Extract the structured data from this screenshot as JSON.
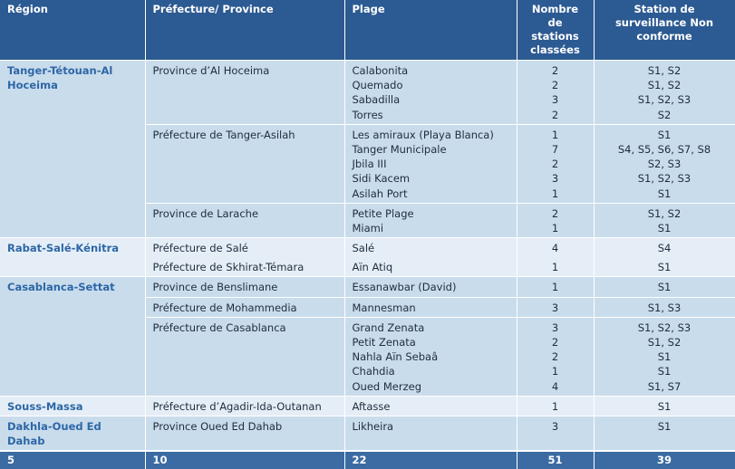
{
  "headers": [
    "Région",
    "Préfecture/ Province",
    "Plage",
    "Nombre de stations classées",
    "Station de surveillance Non conforme"
  ],
  "regions": [
    {
      "name": "Tanger-Tétouan-Al Hoceima",
      "prefectures": [
        {
          "name": "Province d’Al Hoceima",
          "plages": [
            [
              "Calabonita",
              "2",
              "S1, S2"
            ],
            [
              "Quemado",
              "2",
              "S1, S2"
            ],
            [
              "Sabadilla",
              "3",
              "S1, S2, S3"
            ],
            [
              "Torres",
              "2",
              "S2"
            ]
          ]
        },
        {
          "name": "Préfecture de Tanger-Asilah",
          "plages": [
            [
              "Les amiraux (Playa Blanca)",
              "1",
              "S1"
            ],
            [
              "Tanger Municipale",
              "7",
              "S4, S5, S6, S7, S8"
            ],
            [
              "Jbila III",
              "2",
              "S2, S3"
            ],
            [
              "Sidi Kacem",
              "3",
              "S1, S2, S3"
            ],
            [
              "Asilah Port",
              "1",
              "S1"
            ]
          ]
        },
        {
          "name": "Province de Larache",
          "plages": [
            [
              "Petite Plage",
              "2",
              "S1, S2"
            ],
            [
              "Miami",
              "1",
              "S1"
            ]
          ]
        }
      ]
    },
    {
      "name": "Rabat-Salé-Kénitra",
      "prefectures": [
        {
          "name": "Préfecture de Salé",
          "plages": [
            [
              "Salé",
              "4",
              "S4"
            ]
          ]
        },
        {
          "name": "Préfecture de Skhirat-Témara",
          "plages": [
            [
              "Aïn Atiq",
              "1",
              "S1"
            ]
          ],
          "nosep": true
        }
      ]
    },
    {
      "name": "Casablanca-Settat",
      "prefectures": [
        {
          "name": "Province de Benslimane",
          "plages": [
            [
              "Essanawbar (David)",
              "1",
              "S1"
            ]
          ]
        },
        {
          "name": "Préfecture de Mohammedia",
          "plages": [
            [
              "Mannesman",
              "3",
              "S1, S3"
            ]
          ]
        },
        {
          "name": "Préfecture de Casablanca",
          "plages": [
            [
              "Grand Zenata",
              "3",
              "S1, S2, S3"
            ],
            [
              "Petit Zenata",
              "2",
              "S1, S2"
            ],
            [
              "Nahla Aïn Sebaâ",
              "2",
              "S1"
            ],
            [
              "Chahdia",
              "1",
              "S1"
            ],
            [
              "Oued Merzeg",
              "4",
              "S1, S7"
            ]
          ]
        }
      ]
    },
    {
      "name": "Souss-Massa",
      "prefectures": [
        {
          "name": "Préfecture d’Agadir-Ida-Outanan",
          "plages": [
            [
              "Aftasse",
              "1",
              "S1"
            ]
          ]
        }
      ]
    },
    {
      "name": "Dakhla-Oued Ed Dahab",
      "prefectures": [
        {
          "name": "Province Oued Ed Dahab",
          "plages": [
            [
              "Likheira",
              "3",
              "S1"
            ]
          ]
        }
      ]
    }
  ],
  "totals": [
    "5",
    "10",
    "22",
    "51",
    "39"
  ],
  "colors": {
    "header": "#2c5a92",
    "region_text": "#2d67a6",
    "row_dark": "#c9dcec",
    "row_light": "#e5eef7",
    "footer": "#3b6ba2"
  }
}
